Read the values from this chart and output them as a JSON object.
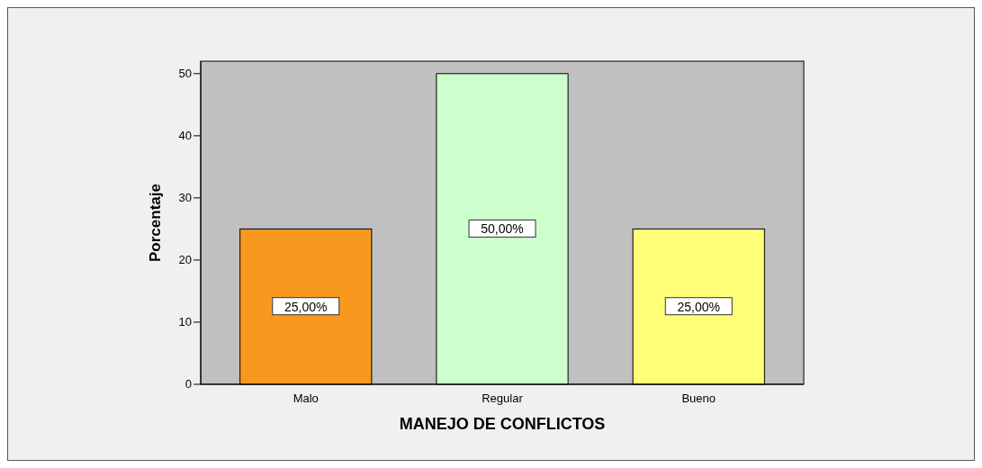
{
  "chart_data": {
    "type": "bar",
    "xlabel": "MANEJO DE CONFLICTOS",
    "ylabel": "Porcentaje",
    "categories": [
      "Malo",
      "Regular",
      "Bueno"
    ],
    "values": [
      25,
      50,
      25
    ],
    "colors": [
      "#f7991f",
      "#ccffcc",
      "#ffff77"
    ],
    "value_labels": [
      "25,00%",
      "50,00%",
      "25,00%"
    ],
    "ylim": [
      0,
      52
    ],
    "yticks": [
      0,
      10,
      20,
      30,
      40,
      50
    ]
  }
}
